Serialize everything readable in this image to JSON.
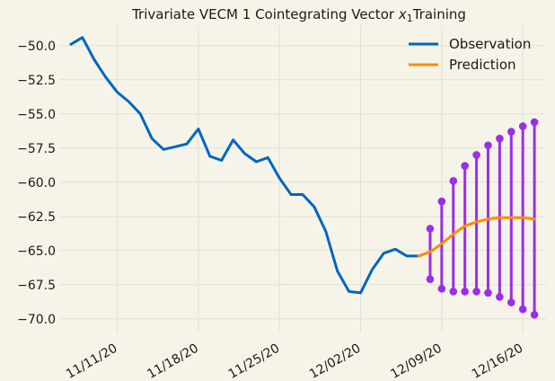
{
  "chart_data": {
    "type": "line",
    "title": "Trivariate VECM 1 Cointegrating Vector",
    "title_symbol": "x",
    "title_subscript": "1",
    "title_suffix": "Training",
    "xlabel": "",
    "ylabel": "",
    "grid": true,
    "legend_placement": "top-right",
    "ylim": [
      -71,
      -48.5
    ],
    "xlim": [
      "2020-11-06",
      "2020-12-18"
    ],
    "x_ticks": [
      "2020-11-11",
      "2020-11-18",
      "2020-11-25",
      "2020-12-02",
      "2020-12-09",
      "2020-12-16"
    ],
    "x_tick_labels": [
      "11/11/20",
      "11/18/20",
      "11/25/20",
      "12/02/20",
      "12/09/20",
      "12/16/20"
    ],
    "y_ticks": [
      -50.0,
      -52.5,
      -55.0,
      -57.5,
      -60.0,
      -62.5,
      -65.0,
      -67.5,
      -70.0
    ],
    "y_tick_labels": [
      "−50.0",
      "−52.5",
      "−55.0",
      "−57.5",
      "−60.0",
      "−62.5",
      "−65.0",
      "−67.5",
      "−70.0"
    ],
    "series": [
      {
        "name": "Observation",
        "color": "#0066c0",
        "x": [
          "2020-11-07",
          "2020-11-08",
          "2020-11-09",
          "2020-11-10",
          "2020-11-11",
          "2020-11-12",
          "2020-11-13",
          "2020-11-14",
          "2020-11-15",
          "2020-11-16",
          "2020-11-17",
          "2020-11-18",
          "2020-11-19",
          "2020-11-20",
          "2020-11-21",
          "2020-11-22",
          "2020-11-23",
          "2020-11-24",
          "2020-11-25",
          "2020-11-26",
          "2020-11-27",
          "2020-11-28",
          "2020-11-29",
          "2020-11-30",
          "2020-12-01",
          "2020-12-02",
          "2020-12-03",
          "2020-12-04",
          "2020-12-05",
          "2020-12-06",
          "2020-12-07"
        ],
        "values": [
          -49.9,
          -49.4,
          -51.0,
          -52.3,
          -53.4,
          -54.1,
          -55.0,
          -56.8,
          -57.6,
          -57.4,
          -57.2,
          -56.1,
          -58.1,
          -58.4,
          -56.9,
          -57.9,
          -58.5,
          -58.2,
          -59.7,
          -60.9,
          -60.9,
          -61.8,
          -63.6,
          -66.5,
          -68.0,
          -68.1,
          -66.4,
          -65.2,
          -64.9,
          -65.4,
          -65.4
        ]
      },
      {
        "name": "Prediction",
        "color": "#ff8c00",
        "x": [
          "2020-12-07",
          "2020-12-08",
          "2020-12-09",
          "2020-12-10",
          "2020-12-11",
          "2020-12-12",
          "2020-12-13",
          "2020-12-14",
          "2020-12-15",
          "2020-12-16",
          "2020-12-17"
        ],
        "values": [
          -65.4,
          -65.1,
          -64.5,
          -63.8,
          -63.2,
          -62.9,
          -62.7,
          -62.6,
          -62.6,
          -62.6,
          -62.7
        ]
      }
    ],
    "intervals": {
      "color": "#9b2ee8",
      "x": [
        "2020-12-08",
        "2020-12-09",
        "2020-12-10",
        "2020-12-11",
        "2020-12-12",
        "2020-12-13",
        "2020-12-14",
        "2020-12-15",
        "2020-12-16",
        "2020-12-17"
      ],
      "upper": [
        -63.4,
        -61.4,
        -59.9,
        -58.8,
        -58.0,
        -57.3,
        -56.8,
        -56.3,
        -55.9,
        -55.6
      ],
      "lower": [
        -67.1,
        -67.8,
        -68.0,
        -68.0,
        -68.0,
        -68.1,
        -68.4,
        -68.8,
        -69.3,
        -69.7
      ]
    }
  }
}
